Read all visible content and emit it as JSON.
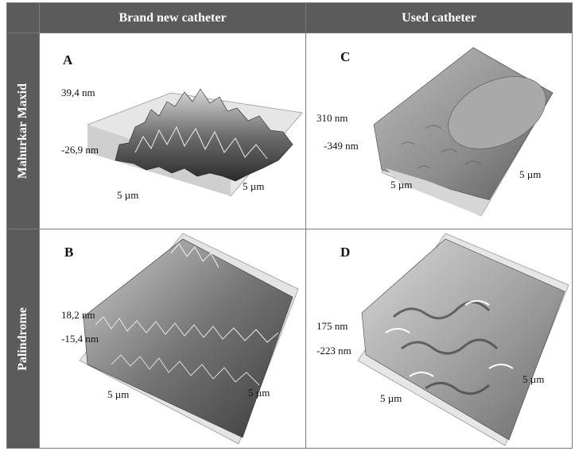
{
  "columns": {
    "left": "Brand new catheter",
    "right": "Used catheter"
  },
  "rows": {
    "top": "Mahurkar Maxid",
    "bottom": "Palindrome"
  },
  "panels": {
    "A": {
      "label": "A",
      "z_max": "39,4 nm",
      "z_min": "-26,9 nm",
      "x_axis": "5 µm",
      "y_axis": "5 µm"
    },
    "B": {
      "label": "B",
      "z_max": "18,2 nm",
      "z_min": "-15,4 nm",
      "x_axis": "5 µm",
      "y_axis": "5 µm"
    },
    "C": {
      "label": "C",
      "z_max": "310 nm",
      "z_min": "-349 nm",
      "x_axis": "5 µm",
      "y_axis": "5 µm"
    },
    "D": {
      "label": "D",
      "z_max": "175 nm",
      "z_min": "-223 nm",
      "x_axis": "5 µm",
      "y_axis": "5 µm"
    }
  }
}
